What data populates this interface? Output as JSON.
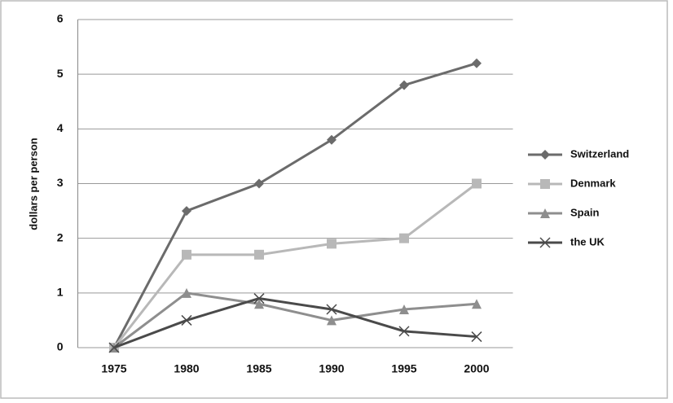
{
  "chart_data": {
    "type": "line",
    "y_label": "dollars per person",
    "categories": [
      "1975",
      "1980",
      "1985",
      "1990",
      "1995",
      "2000"
    ],
    "series": [
      {
        "name": "Switzerland",
        "color": "#6b6b6b",
        "marker": "diamond",
        "values": [
          0,
          2.5,
          3,
          3.8,
          4.8,
          5.2
        ]
      },
      {
        "name": "Denmark",
        "color": "#b8b8b8",
        "marker": "square",
        "values": [
          0,
          1.7,
          1.7,
          1.9,
          2.0,
          3.0
        ]
      },
      {
        "name": "Spain",
        "color": "#8e8e8e",
        "marker": "triangle",
        "values": [
          0,
          1.0,
          0.8,
          0.5,
          0.7,
          0.8
        ]
      },
      {
        "name": "the UK",
        "color": "#4a4a4a",
        "marker": "x",
        "values": [
          0,
          0.5,
          0.9,
          0.7,
          0.3,
          0.2
        ]
      }
    ],
    "ylim": [
      0,
      6
    ],
    "yticks": [
      0,
      1,
      2,
      3,
      4,
      5,
      6
    ],
    "grid": true,
    "legend": "right"
  }
}
